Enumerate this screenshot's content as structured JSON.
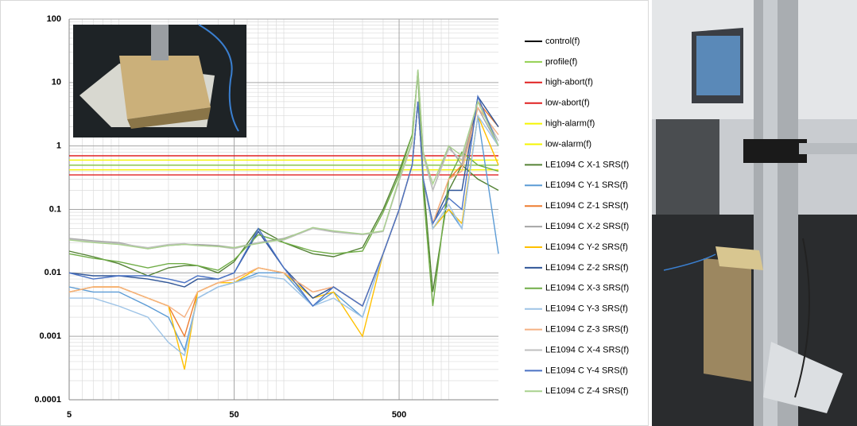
{
  "chart_data": {
    "type": "line",
    "log_x": true,
    "log_y": true,
    "grid": true,
    "minor_grid": true,
    "legend": "right",
    "xlim": [
      5,
      2000
    ],
    "ylim": [
      0.0001,
      100
    ],
    "xticks": [
      5,
      50,
      500
    ],
    "yticks": [
      0.0001,
      0.001,
      0.01,
      0.1,
      1,
      10,
      100
    ],
    "x": [
      5,
      7,
      10,
      15,
      20,
      25,
      30,
      40,
      50,
      70,
      100,
      150,
      200,
      300,
      400,
      500,
      600,
      650,
      700,
      800,
      1000,
      1200,
      1500,
      2000
    ],
    "series": [
      {
        "name": "control(f)",
        "color": "#000000",
        "values": [
          0.5,
          0.5,
          0.5,
          0.5,
          0.5,
          0.5,
          0.5,
          0.5,
          0.5,
          0.5,
          0.5,
          0.5,
          0.5,
          0.5,
          0.5,
          0.5,
          0.5,
          0.5,
          0.5,
          0.5,
          0.5,
          0.5,
          0.5,
          0.5
        ]
      },
      {
        "name": "profile(f)",
        "color": "#92d050",
        "values": [
          0.5,
          0.5,
          0.5,
          0.5,
          0.5,
          0.5,
          0.5,
          0.5,
          0.5,
          0.5,
          0.5,
          0.5,
          0.5,
          0.5,
          0.5,
          0.5,
          0.5,
          0.5,
          0.5,
          0.5,
          0.5,
          0.5,
          0.5,
          0.5
        ]
      },
      {
        "name": "high-abort(f)",
        "color": "#e02020",
        "values": [
          0.7,
          0.7,
          0.7,
          0.7,
          0.7,
          0.7,
          0.7,
          0.7,
          0.7,
          0.7,
          0.7,
          0.7,
          0.7,
          0.7,
          0.7,
          0.7,
          0.7,
          0.7,
          0.7,
          0.7,
          0.7,
          0.7,
          0.7,
          0.7
        ]
      },
      {
        "name": "low-abort(f)",
        "color": "#e02020",
        "values": [
          0.35,
          0.35,
          0.35,
          0.35,
          0.35,
          0.35,
          0.35,
          0.35,
          0.35,
          0.35,
          0.35,
          0.35,
          0.35,
          0.35,
          0.35,
          0.35,
          0.35,
          0.35,
          0.35,
          0.35,
          0.35,
          0.35,
          0.35,
          0.35
        ]
      },
      {
        "name": "high-alarm(f)",
        "color": "#f5f500",
        "values": [
          0.6,
          0.6,
          0.6,
          0.6,
          0.6,
          0.6,
          0.6,
          0.6,
          0.6,
          0.6,
          0.6,
          0.6,
          0.6,
          0.6,
          0.6,
          0.6,
          0.6,
          0.6,
          0.6,
          0.6,
          0.6,
          0.6,
          0.6,
          0.6
        ]
      },
      {
        "name": "low-alarm(f)",
        "color": "#f5f500",
        "values": [
          0.42,
          0.42,
          0.42,
          0.42,
          0.42,
          0.42,
          0.42,
          0.42,
          0.42,
          0.42,
          0.42,
          0.42,
          0.42,
          0.42,
          0.42,
          0.42,
          0.42,
          0.42,
          0.42,
          0.42,
          0.42,
          0.42,
          0.42,
          0.42
        ]
      },
      {
        "name": "LE1094 C X-1 SRS(f)",
        "color": "#548235",
        "values": [
          0.022,
          0.018,
          0.014,
          0.009,
          0.012,
          0.013,
          0.013,
          0.01,
          0.015,
          0.05,
          0.03,
          0.02,
          0.018,
          0.025,
          0.1,
          0.4,
          1.5,
          15,
          0.3,
          0.005,
          0.2,
          0.5,
          0.3,
          0.2
        ]
      },
      {
        "name": "LE1094 C Y-1 SRS(f)",
        "color": "#5b9bd5",
        "values": [
          0.006,
          0.005,
          0.005,
          0.003,
          0.002,
          0.0006,
          0.004,
          0.006,
          0.007,
          0.01,
          0.01,
          0.003,
          0.005,
          0.002,
          0.02,
          0.1,
          0.5,
          5,
          0.3,
          0.05,
          0.1,
          0.05,
          3,
          0.02
        ]
      },
      {
        "name": "LE1094 C Z-1 SRS(f)",
        "color": "#ed7d31",
        "values": [
          0.005,
          0.006,
          0.006,
          0.004,
          0.003,
          0.001,
          0.005,
          0.007,
          0.008,
          0.012,
          0.01,
          0.005,
          0.006,
          0.003,
          0.02,
          0.1,
          0.5,
          5,
          0.3,
          0.06,
          0.3,
          0.5,
          5,
          2
        ]
      },
      {
        "name": "LE1094 C X-2 SRS(f)",
        "color": "#a5a5a5",
        "values": [
          0.035,
          0.032,
          0.03,
          0.024,
          0.027,
          0.028,
          0.028,
          0.027,
          0.025,
          0.03,
          0.035,
          0.05,
          0.045,
          0.04,
          0.045,
          0.3,
          1.2,
          16,
          0.8,
          0.2,
          1,
          0.5,
          4,
          1
        ]
      },
      {
        "name": "LE1094 C Y-2 SRS(f)",
        "color": "#ffc000",
        "values": [
          0.005,
          0.006,
          0.006,
          0.004,
          0.003,
          0.0003,
          0.005,
          0.007,
          0.007,
          0.012,
          0.01,
          0.004,
          0.005,
          0.001,
          0.02,
          0.1,
          0.5,
          5,
          0.3,
          0.05,
          0.1,
          0.06,
          3,
          0.5
        ]
      },
      {
        "name": "LE1094 C Z-2 SRS(f)",
        "color": "#2f5597",
        "values": [
          0.01,
          0.009,
          0.009,
          0.008,
          0.007,
          0.006,
          0.008,
          0.008,
          0.01,
          0.045,
          0.012,
          0.004,
          0.006,
          0.003,
          0.02,
          0.1,
          0.5,
          5,
          0.3,
          0.06,
          0.2,
          0.2,
          6,
          2
        ]
      },
      {
        "name": "LE1094 C X-3 SRS(f)",
        "color": "#70ad47",
        "values": [
          0.02,
          0.017,
          0.015,
          0.012,
          0.014,
          0.014,
          0.013,
          0.011,
          0.016,
          0.04,
          0.03,
          0.022,
          0.02,
          0.022,
          0.09,
          0.35,
          1.5,
          14,
          0.2,
          0.003,
          0.3,
          0.8,
          0.5,
          0.4
        ]
      },
      {
        "name": "LE1094 C Y-3 SRS(f)",
        "color": "#9dc3e6",
        "values": [
          0.004,
          0.004,
          0.003,
          0.002,
          0.0008,
          0.0005,
          0.004,
          0.006,
          0.007,
          0.009,
          0.008,
          0.003,
          0.004,
          0.002,
          0.02,
          0.1,
          0.5,
          5,
          0.3,
          0.05,
          0.12,
          0.05,
          3,
          1
        ]
      },
      {
        "name": "LE1094 C Z-3 SRS(f)",
        "color": "#f4b183",
        "values": [
          0.005,
          0.006,
          0.006,
          0.004,
          0.003,
          0.002,
          0.005,
          0.007,
          0.008,
          0.012,
          0.01,
          0.005,
          0.006,
          0.003,
          0.02,
          0.1,
          0.5,
          5,
          0.3,
          0.06,
          0.3,
          0.4,
          4,
          1.5
        ]
      },
      {
        "name": "LE1094 C X-4 SRS(f)",
        "color": "#bfbfbf",
        "values": [
          0.034,
          0.031,
          0.029,
          0.025,
          0.028,
          0.029,
          0.027,
          0.026,
          0.024,
          0.03,
          0.033,
          0.05,
          0.044,
          0.04,
          0.045,
          0.28,
          1.1,
          15,
          0.7,
          0.2,
          0.9,
          0.6,
          5,
          1.2
        ]
      },
      {
        "name": "LE1094 C Y-4 SRS(f)",
        "color": "#4a72c4",
        "values": [
          0.01,
          0.008,
          0.009,
          0.009,
          0.008,
          0.007,
          0.009,
          0.008,
          0.01,
          0.05,
          0.012,
          0.003,
          0.006,
          0.003,
          0.02,
          0.1,
          0.5,
          5,
          0.3,
          0.06,
          0.15,
          0.1,
          6,
          1
        ]
      },
      {
        "name": "LE1094 C Z-4 SRS(f)",
        "color": "#a9d18e",
        "values": [
          0.033,
          0.03,
          0.028,
          0.024,
          0.027,
          0.028,
          0.027,
          0.026,
          0.025,
          0.029,
          0.034,
          0.052,
          0.046,
          0.041,
          0.046,
          0.3,
          1.2,
          16,
          0.8,
          0.25,
          1,
          0.7,
          5,
          1
        ]
      }
    ]
  }
}
